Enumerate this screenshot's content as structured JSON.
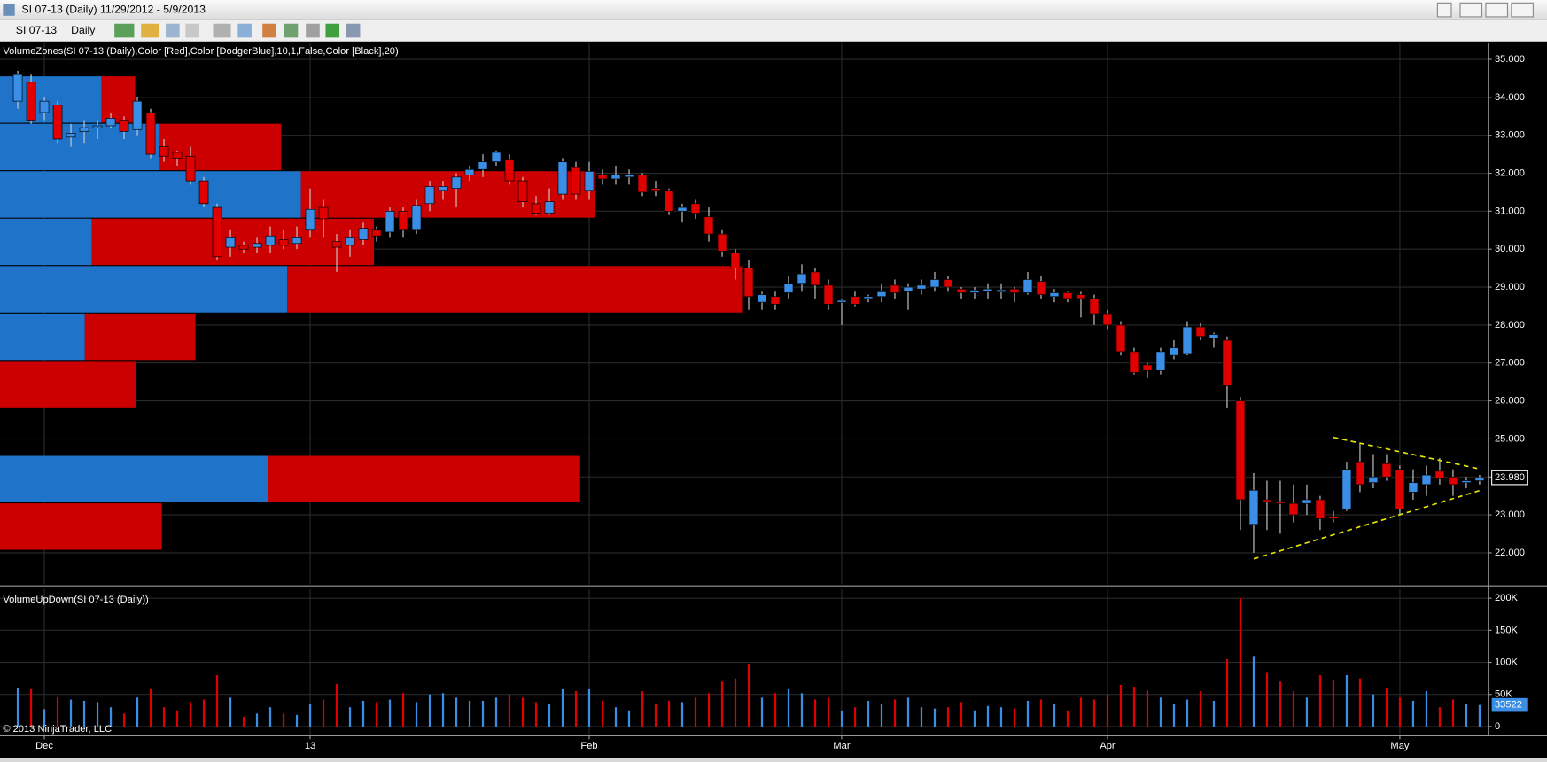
{
  "window": {
    "title": "SI 07-13 (Daily)  11/29/2012 - 5/9/2013",
    "instrument": "SI 07-13",
    "interval": "Daily"
  },
  "chart_data": {
    "type": "candlestick",
    "price_indicator": "VolumeZones(SI 07-13 (Daily),Color [Red],Color [DodgerBlue],10,1,False,Color [Black],20)",
    "volume_indicator": "VolumeUpDown(SI 07-13 (Daily))",
    "copyright": "© 2013 NinjaTrader, LLC",
    "up_color": "#3a8ee6",
    "down_color": "#e00000",
    "zone_up_color": "#1f74c9",
    "zone_down_color": "#cc0000",
    "trendline_color": "#e6e600",
    "grid": true,
    "open": [
      33.9,
      34.4,
      33.6,
      33.8,
      32.95,
      33.1,
      33.2,
      33.25,
      33.4,
      33.15,
      33.6,
      32.7,
      32.55,
      32.45,
      31.8,
      31.1,
      30.05,
      30.1,
      30.05,
      30.1,
      30.25,
      30.15,
      30.5,
      31.1,
      30.2,
      30.1,
      30.25,
      30.5,
      30.45,
      31.0,
      30.5,
      31.2,
      31.55,
      31.6,
      31.95,
      32.1,
      32.3,
      32.35,
      31.8,
      31.2,
      30.95,
      31.45,
      32.15,
      31.55,
      31.95,
      31.85,
      31.9,
      31.95,
      31.6,
      31.55,
      31.0,
      31.2,
      30.85,
      30.4,
      29.9,
      29.5,
      28.6,
      28.75,
      28.85,
      29.1,
      29.4,
      29.05,
      28.6,
      28.75,
      28.7,
      28.75,
      29.05,
      28.9,
      28.95,
      29.0,
      29.2,
      28.95,
      28.85,
      28.9,
      28.9,
      28.95,
      28.85,
      29.15,
      28.75,
      28.85,
      28.8,
      28.7,
      28.3,
      28.0,
      27.3,
      26.95,
      26.8,
      27.2,
      27.25,
      27.95,
      27.65,
      27.6,
      26.0,
      22.75,
      23.4,
      23.35,
      23.3,
      23.3,
      23.4,
      22.95,
      23.15,
      24.4,
      23.85,
      24.35,
      24.2,
      23.6,
      23.8,
      24.15,
      24.0,
      23.85,
      23.9
    ],
    "high": [
      34.7,
      34.6,
      34.0,
      33.9,
      33.3,
      33.4,
      33.4,
      33.6,
      33.5,
      34.0,
      33.7,
      32.9,
      32.6,
      32.7,
      31.9,
      31.2,
      30.5,
      30.2,
      30.3,
      30.6,
      30.5,
      30.6,
      31.6,
      31.3,
      30.4,
      30.5,
      30.7,
      30.6,
      31.1,
      31.1,
      31.3,
      31.8,
      31.8,
      32.0,
      32.2,
      32.5,
      32.6,
      32.5,
      31.9,
      31.4,
      31.6,
      32.4,
      32.3,
      32.3,
      32.1,
      32.2,
      32.1,
      32.0,
      31.8,
      31.6,
      31.2,
      31.3,
      31.1,
      30.5,
      30.0,
      29.7,
      28.9,
      28.9,
      29.3,
      29.6,
      29.5,
      29.2,
      28.7,
      28.9,
      28.8,
      29.1,
      29.2,
      29.1,
      29.2,
      29.4,
      29.3,
      29.0,
      29.0,
      29.1,
      29.1,
      29.0,
      29.4,
      29.3,
      28.95,
      28.9,
      28.9,
      28.8,
      28.4,
      28.1,
      27.4,
      27.0,
      27.4,
      27.6,
      28.1,
      28.05,
      27.8,
      27.7,
      26.1,
      24.1,
      23.9,
      23.9,
      23.8,
      23.8,
      23.5,
      23.1,
      24.4,
      24.9,
      24.6,
      24.6,
      24.3,
      24.2,
      24.3,
      24.5,
      24.2,
      24.0,
      24.05
    ],
    "low": [
      33.7,
      33.3,
      33.4,
      32.8,
      32.7,
      32.8,
      32.9,
      33.2,
      32.9,
      33.0,
      32.4,
      32.3,
      32.2,
      31.7,
      31.1,
      29.7,
      29.8,
      29.9,
      29.9,
      29.9,
      30.0,
      30.0,
      30.3,
      30.3,
      29.4,
      29.8,
      30.1,
      30.2,
      30.3,
      30.3,
      30.4,
      31.0,
      31.3,
      31.1,
      31.8,
      31.9,
      32.2,
      31.7,
      31.1,
      30.9,
      30.9,
      31.3,
      31.3,
      31.3,
      31.7,
      31.7,
      31.7,
      31.4,
      31.4,
      30.9,
      30.7,
      30.8,
      30.2,
      29.8,
      29.2,
      28.4,
      28.4,
      28.4,
      28.7,
      28.9,
      28.7,
      28.4,
      28.0,
      28.5,
      28.6,
      28.6,
      28.7,
      28.4,
      28.8,
      28.9,
      28.9,
      28.7,
      28.7,
      28.7,
      28.7,
      28.6,
      28.8,
      28.7,
      28.6,
      28.6,
      28.2,
      28.0,
      27.9,
      27.2,
      26.7,
      26.6,
      26.7,
      27.1,
      27.2,
      27.6,
      27.4,
      25.8,
      22.6,
      22.0,
      22.6,
      22.5,
      22.8,
      23.0,
      22.6,
      22.8,
      23.1,
      23.6,
      23.7,
      23.9,
      23.0,
      23.4,
      23.5,
      23.8,
      23.5,
      23.7,
      23.8
    ],
    "close": [
      34.6,
      33.4,
      33.9,
      32.9,
      33.05,
      33.2,
      33.25,
      33.45,
      33.1,
      33.9,
      32.5,
      32.45,
      32.4,
      31.8,
      31.2,
      29.8,
      30.3,
      30.0,
      30.15,
      30.35,
      30.1,
      30.3,
      31.05,
      30.8,
      30.05,
      30.3,
      30.55,
      30.35,
      31.0,
      30.5,
      31.15,
      31.65,
      31.65,
      31.9,
      32.1,
      32.3,
      32.55,
      31.8,
      31.25,
      30.95,
      31.25,
      32.3,
      31.45,
      32.05,
      31.85,
      31.95,
      31.97,
      31.5,
      31.55,
      31.0,
      31.1,
      30.95,
      30.4,
      29.95,
      29.5,
      28.75,
      28.8,
      28.55,
      29.1,
      29.35,
      29.05,
      28.55,
      28.65,
      28.55,
      28.75,
      28.9,
      28.85,
      29.0,
      29.05,
      29.2,
      29.0,
      28.85,
      28.92,
      28.95,
      28.93,
      28.85,
      29.2,
      28.8,
      28.85,
      28.7,
      28.7,
      28.3,
      28.0,
      27.3,
      26.75,
      26.8,
      27.3,
      27.4,
      27.95,
      27.7,
      27.75,
      26.4,
      23.4,
      23.65,
      23.35,
      23.3,
      23.0,
      23.4,
      22.9,
      22.9,
      24.2,
      23.8,
      24.0,
      24.0,
      23.15,
      23.85,
      24.05,
      23.95,
      23.8,
      23.9,
      23.98
    ],
    "last_close_label": "23.980",
    "volume": [
      60000,
      58000,
      27000,
      45000,
      42000,
      40000,
      38000,
      30000,
      20000,
      45000,
      58000,
      30000,
      25000,
      38000,
      42000,
      80000,
      45000,
      15000,
      20000,
      30000,
      20000,
      18000,
      35000,
      42000,
      66000,
      30000,
      40000,
      38000,
      42000,
      52000,
      38000,
      50000,
      52000,
      45000,
      40000,
      40000,
      45000,
      50000,
      45000,
      38000,
      35000,
      58000,
      55000,
      58000,
      40000,
      30000,
      25000,
      55000,
      35000,
      40000,
      38000,
      45000,
      52000,
      70000,
      75000,
      98000,
      45000,
      52000,
      58000,
      52000,
      42000,
      45000,
      25000,
      30000,
      40000,
      35000,
      42000,
      45000,
      30000,
      28000,
      30000,
      38000,
      25000,
      32000,
      30000,
      28000,
      40000,
      42000,
      35000,
      25000,
      45000,
      42000,
      50000,
      65000,
      62000,
      56000,
      45000,
      35000,
      42000,
      55000,
      40000,
      105000,
      200000,
      110000,
      85000,
      70000,
      55000,
      45000,
      80000,
      72000,
      80000,
      75000,
      50000,
      60000,
      45000,
      40000,
      55000,
      30000,
      42000,
      35000,
      33522
    ],
    "zones": [
      {
        "low": 33.33,
        "high": 34.58,
        "up": 1030,
        "down": 340
      },
      {
        "low": 32.08,
        "high": 33.33,
        "up": 1620,
        "down": 1230
      },
      {
        "low": 30.83,
        "high": 32.08,
        "up": 3050,
        "down": 2980
      },
      {
        "low": 29.58,
        "high": 30.83,
        "up": 930,
        "down": 2860
      },
      {
        "low": 28.33,
        "high": 29.58,
        "up": 2910,
        "down": 4620
      },
      {
        "low": 27.08,
        "high": 28.33,
        "up": 860,
        "down": 1120
      },
      {
        "low": 25.83,
        "high": 27.08,
        "up": 0,
        "down": 1380
      },
      {
        "low": 24.58,
        "high": 25.83,
        "up": 0,
        "down": 0
      },
      {
        "low": 23.33,
        "high": 24.58,
        "up": 2720,
        "down": 3160
      },
      {
        "low": 22.08,
        "high": 23.33,
        "up": 0,
        "down": 1640
      }
    ],
    "trendlines": [
      {
        "x": [
          99,
          110
        ],
        "y": [
          25.04,
          24.21
        ]
      },
      {
        "x": [
          93,
          110
        ],
        "y": [
          21.84,
          23.64
        ]
      }
    ],
    "xticks": [
      {
        "value": 2,
        "label": "Dec"
      },
      {
        "value": 22,
        "label": "13"
      },
      {
        "value": 43,
        "label": "Feb"
      },
      {
        "value": 62,
        "label": "Mar"
      },
      {
        "value": 82,
        "label": "Apr"
      },
      {
        "value": 104,
        "label": "May"
      }
    ],
    "ylim": [
      21.17,
      35.42
    ],
    "yticks": [
      {
        "value": 22,
        "label": "22.000"
      },
      {
        "value": 23,
        "label": "23.000"
      },
      {
        "value": 24,
        "label": "24.000"
      },
      {
        "value": 25,
        "label": "25.000"
      },
      {
        "value": 26,
        "label": "26.000"
      },
      {
        "value": 27,
        "label": "27.000"
      },
      {
        "value": 28,
        "label": "28.000"
      },
      {
        "value": 29,
        "label": "29.000"
      },
      {
        "value": 30,
        "label": "30.000"
      },
      {
        "value": 31,
        "label": "31.000"
      },
      {
        "value": 32,
        "label": "32.000"
      },
      {
        "value": 33,
        "label": "33.000"
      },
      {
        "value": 34,
        "label": "34.000"
      },
      {
        "value": 35,
        "label": "35.000"
      }
    ],
    "y2lim": [
      0,
      214000
    ],
    "y2ticks": [
      0,
      {
        "value": 50000,
        "label": "50K"
      },
      {
        "value": 100000,
        "label": "100K"
      },
      {
        "value": 150000,
        "label": "150K"
      },
      {
        "value": 200000,
        "label": "200K"
      }
    ]
  }
}
